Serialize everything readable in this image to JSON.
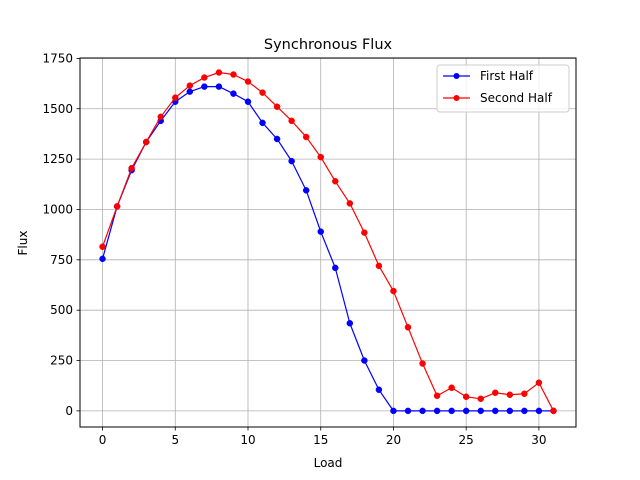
{
  "chart_data": {
    "type": "line",
    "title": "Synchronous Flux",
    "xlabel": "Load",
    "ylabel": "Flux",
    "xlim": [
      -1.55,
      32.55
    ],
    "ylim": [
      -80,
      1752
    ],
    "xticks": [
      0,
      5,
      10,
      15,
      20,
      25,
      30
    ],
    "yticks": [
      0,
      250,
      500,
      750,
      1000,
      1250,
      1500,
      1750
    ],
    "grid": true,
    "legend_position": "top-right",
    "x": [
      0,
      1,
      2,
      3,
      4,
      5,
      6,
      7,
      8,
      9,
      10,
      11,
      12,
      13,
      14,
      15,
      16,
      17,
      18,
      19,
      20,
      21,
      22,
      23,
      24,
      25,
      26,
      27,
      28,
      29,
      30,
      31
    ],
    "series": [
      {
        "name": "First Half",
        "color": "#0000ff",
        "marker": "circle",
        "values": [
          755,
          1015,
          1195,
          1335,
          1440,
          1535,
          1585,
          1610,
          1610,
          1575,
          1535,
          1430,
          1350,
          1240,
          1095,
          890,
          710,
          435,
          250,
          105,
          0,
          0,
          0,
          0,
          0,
          0,
          0,
          0,
          0,
          0,
          0,
          0
        ]
      },
      {
        "name": "Second Half",
        "color": "#ff0000",
        "marker": "circle",
        "values": [
          815,
          1015,
          1205,
          1335,
          1460,
          1555,
          1615,
          1655,
          1680,
          1670,
          1635,
          1580,
          1510,
          1440,
          1360,
          1260,
          1140,
          1030,
          885,
          720,
          595,
          415,
          235,
          75,
          115,
          70,
          60,
          90,
          80,
          85,
          140,
          0
        ]
      }
    ]
  }
}
